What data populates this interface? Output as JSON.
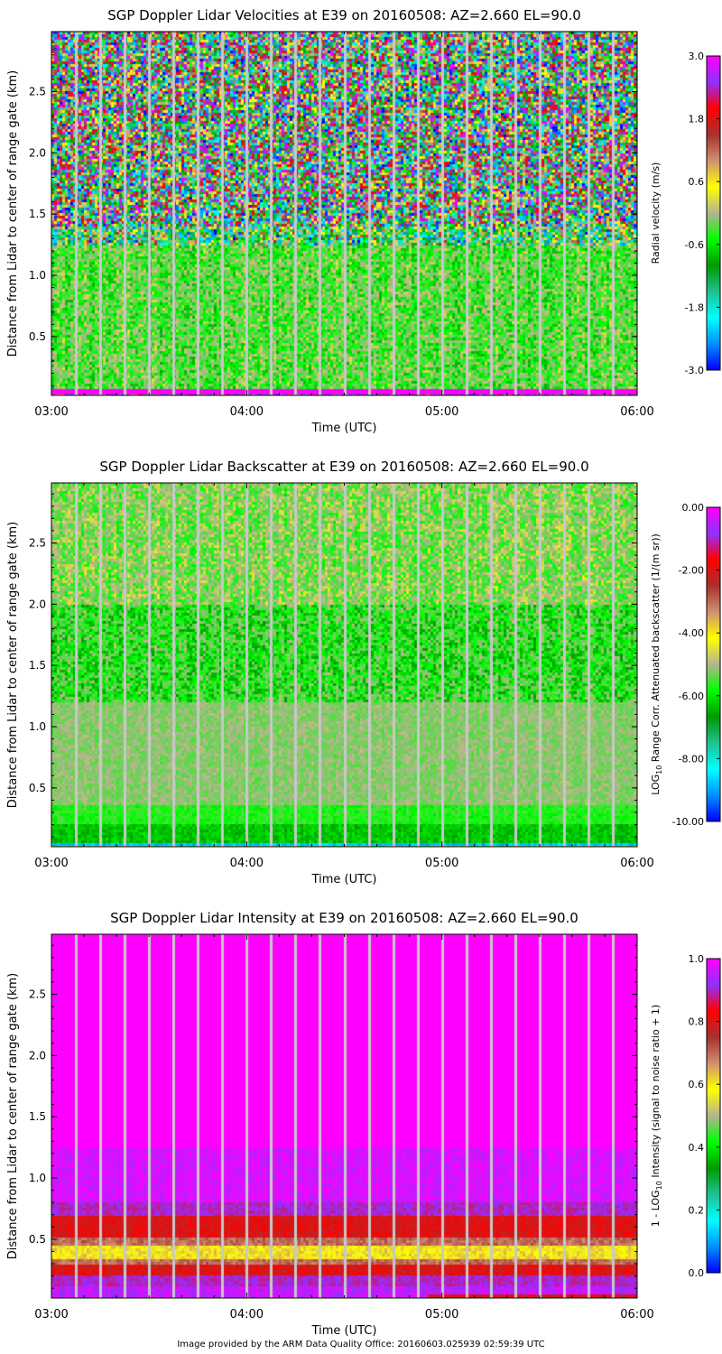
{
  "footer": "Image provided by the ARM Data Quality Office: 20160603.025939 02:59:39 UTC",
  "chart_data": [
    {
      "type": "heatmap",
      "title": "SGP Doppler Lidar Velocities at E39 on 20160508: AZ=2.660 EL=90.0",
      "xlabel": "Time (UTC)",
      "ylabel": "Distance from Lidar to center of range gate (km)",
      "xticks": [
        "03:00",
        "04:00",
        "05:00",
        "06:00"
      ],
      "xlim_hours": [
        3,
        6
      ],
      "yticks": [
        "0.5",
        "1.0",
        "1.5",
        "2.0",
        "2.5"
      ],
      "ylim": [
        0.02,
        2.99
      ],
      "colorbar": {
        "label": "Radial velocity (m/s)",
        "range": [
          -3.0,
          3.0
        ],
        "ticks": [
          "3.0",
          "1.8",
          "0.6",
          "-0.6",
          "-1.8",
          "-3.0"
        ]
      },
      "height_profile": [
        {
          "from_km": 0.02,
          "to_km": 0.07,
          "value": 3.0,
          "noise": 0.1
        },
        {
          "from_km": 0.07,
          "to_km": 1.25,
          "value": -0.3,
          "noise": 0.5
        },
        {
          "from_km": 1.25,
          "to_km": 1.4,
          "value": -0.6,
          "noise": 2.0
        },
        {
          "from_km": 1.4,
          "to_km": 2.99,
          "value": 0.0,
          "noise": 3.0
        }
      ]
    },
    {
      "type": "heatmap",
      "title": "SGP Doppler Lidar Backscatter at E39 on 20160508: AZ=2.660 EL=90.0",
      "xlabel": "Time (UTC)",
      "ylabel": "Distance from Lidar to center of range gate (km)",
      "xticks": [
        "03:00",
        "04:00",
        "05:00",
        "06:00"
      ],
      "xlim_hours": [
        3,
        6
      ],
      "yticks": [
        "0.5",
        "1.0",
        "1.5",
        "2.0",
        "2.5"
      ],
      "ylim": [
        0.02,
        2.99
      ],
      "colorbar": {
        "label": "LOG10 Range Corr. Attenuated backscatter (1/(m sr))",
        "label_main": "LOG",
        "label_sub": "10",
        "label_rest": " Range Corr. Attenuated backscatter (1/(m sr))",
        "range": [
          -10.0,
          0.0
        ],
        "ticks": [
          "0.00",
          "-2.00",
          "-4.00",
          "-6.00",
          "-8.00",
          "-10.00"
        ]
      },
      "height_profile": [
        {
          "from_km": 0.02,
          "to_km": 0.05,
          "value": -8.8,
          "noise": 0.3
        },
        {
          "from_km": 0.05,
          "to_km": 0.2,
          "value": -6.3,
          "noise": 0.3
        },
        {
          "from_km": 0.2,
          "to_km": 0.35,
          "value": -5.7,
          "noise": 0.3
        },
        {
          "from_km": 0.35,
          "to_km": 1.2,
          "value": -5.2,
          "noise": 0.3
        },
        {
          "from_km": 1.2,
          "to_km": 2.0,
          "value": -5.8,
          "noise": 0.8
        },
        {
          "from_km": 2.0,
          "to_km": 2.99,
          "value": -5.2,
          "noise": 0.7
        }
      ]
    },
    {
      "type": "heatmap",
      "title": "SGP Doppler Lidar Intensity at E39 on 20160508: AZ=2.660 EL=90.0",
      "xlabel": "Time (UTC)",
      "ylabel": "Distance from Lidar to center of range gate (km)",
      "xticks": [
        "03:00",
        "04:00",
        "05:00",
        "06:00"
      ],
      "xlim_hours": [
        3,
        6
      ],
      "yticks": [
        "0.5",
        "1.0",
        "1.5",
        "2.0",
        "2.5"
      ],
      "ylim": [
        0.02,
        2.99
      ],
      "colorbar": {
        "label": "1 - LOG10 Intensity (signal to noise ratio + 1)",
        "label_main": "1 - LOG",
        "label_sub": "10",
        "label_rest": " Intensity (signal to noise ratio + 1)",
        "range": [
          0.0,
          1.0
        ],
        "ticks": [
          "1.0",
          "0.8",
          "0.6",
          "0.4",
          "0.2",
          "0.0"
        ]
      },
      "height_profile": [
        {
          "from_km": 0.02,
          "to_km": 0.12,
          "value": 0.95,
          "noise": 0.04
        },
        {
          "from_km": 0.12,
          "to_km": 0.2,
          "value": 0.9,
          "noise": 0.03
        },
        {
          "from_km": 0.2,
          "to_km": 0.3,
          "value": 0.8,
          "noise": 0.03
        },
        {
          "from_km": 0.3,
          "to_km": 0.34,
          "value": 0.7,
          "noise": 0.03
        },
        {
          "from_km": 0.34,
          "to_km": 0.45,
          "value": 0.6,
          "noise": 0.04
        },
        {
          "from_km": 0.45,
          "to_km": 0.52,
          "value": 0.7,
          "noise": 0.03
        },
        {
          "from_km": 0.52,
          "to_km": 0.68,
          "value": 0.8,
          "noise": 0.03
        },
        {
          "from_km": 0.68,
          "to_km": 0.8,
          "value": 0.9,
          "noise": 0.03
        },
        {
          "from_km": 0.8,
          "to_km": 1.25,
          "value": 0.97,
          "noise": 0.03
        },
        {
          "from_km": 1.25,
          "to_km": 2.99,
          "value": 1.0,
          "noise": 0.0
        }
      ]
    }
  ],
  "colors": {
    "scale": [
      "#0000ff",
      "#0090ff",
      "#00ffff",
      "#20c090",
      "#009a00",
      "#00ff00",
      "#b4b490",
      "#ffff00",
      "#d09070",
      "#a83030",
      "#ff0000",
      "#9030ff",
      "#ff00ff"
    ],
    "gap_line": "#c8c8c8"
  }
}
